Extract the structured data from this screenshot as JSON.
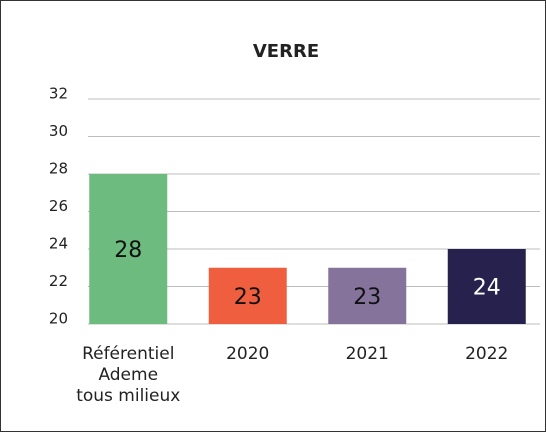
{
  "chart_data": {
    "type": "bar",
    "title": "VERRE",
    "categories": [
      "Référentiel\nAdeme\ntous milieux",
      "2020",
      "2021",
      "2022"
    ],
    "values": [
      28,
      23,
      23,
      24
    ],
    "colors": [
      "#6dbb7e",
      "#ee5e3f",
      "#86739c",
      "#27224d"
    ],
    "value_label_colors": [
      "#111111",
      "#111111",
      "#111111",
      "#ffffff"
    ],
    "ylim": [
      20,
      32
    ],
    "yticks": [
      20,
      22,
      24,
      26,
      28,
      30,
      32
    ],
    "grid": true
  }
}
